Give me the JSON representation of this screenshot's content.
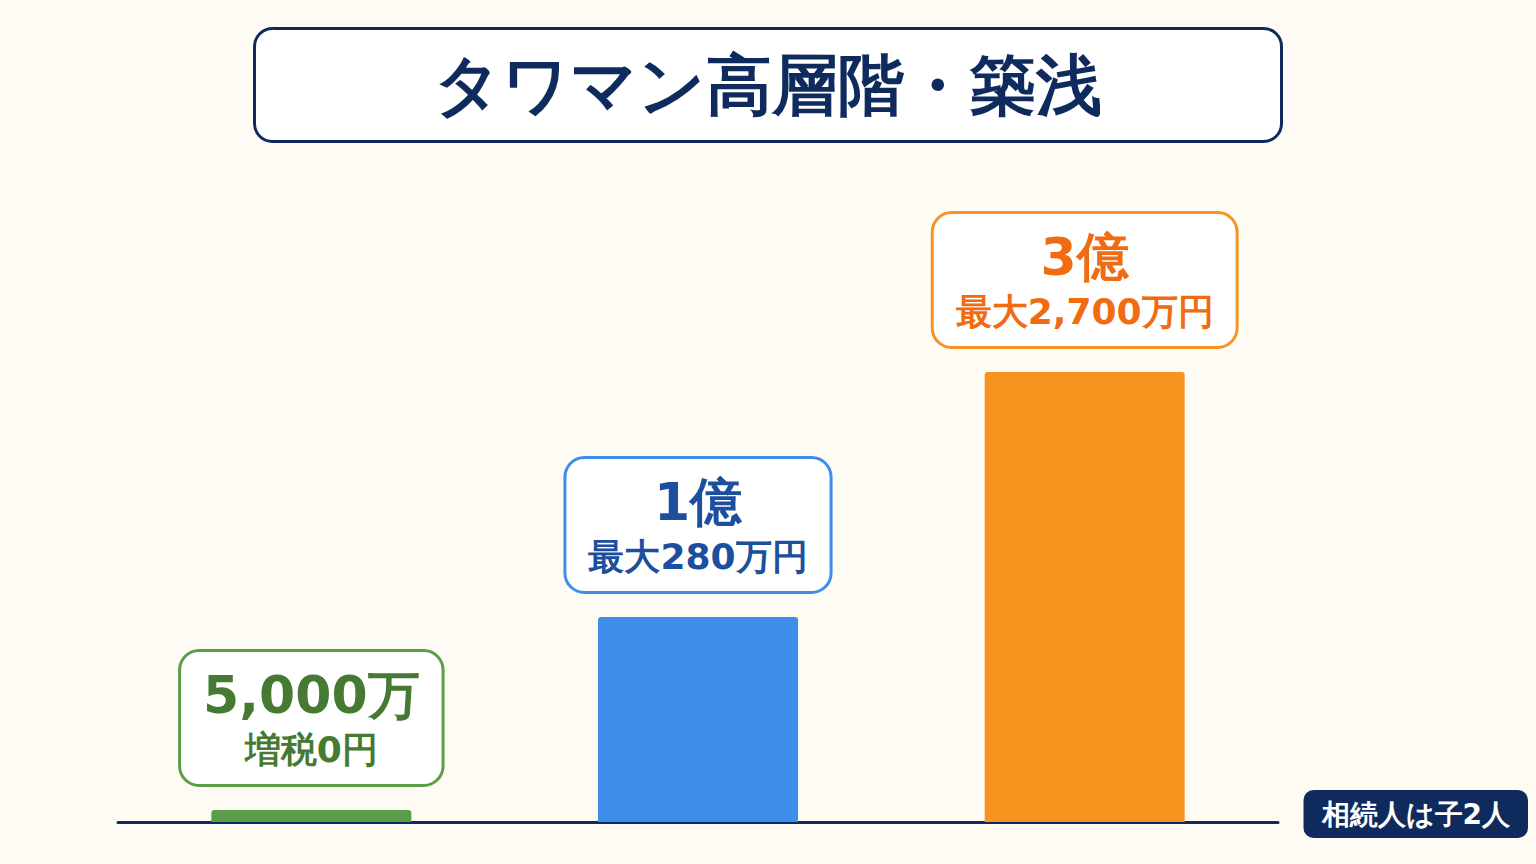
{
  "chart_data": {
    "type": "bar",
    "title": "タワマン高層階・築浅",
    "categories": [
      "5,000万",
      "1億",
      "3億"
    ],
    "values": [
      2.4,
      41,
      90
    ],
    "annotations": [
      "増税0円",
      "最大280万円",
      "最大2,700万円"
    ],
    "note": "相続人は子2人",
    "colors": [
      "#5a9e48",
      "#3d8ee8",
      "#f7931e"
    ],
    "ylim": [
      0,
      100
    ],
    "yticks": [
      0,
      100
    ],
    "grid": false,
    "tick_labels": false,
    "data_labels": false
  }
}
